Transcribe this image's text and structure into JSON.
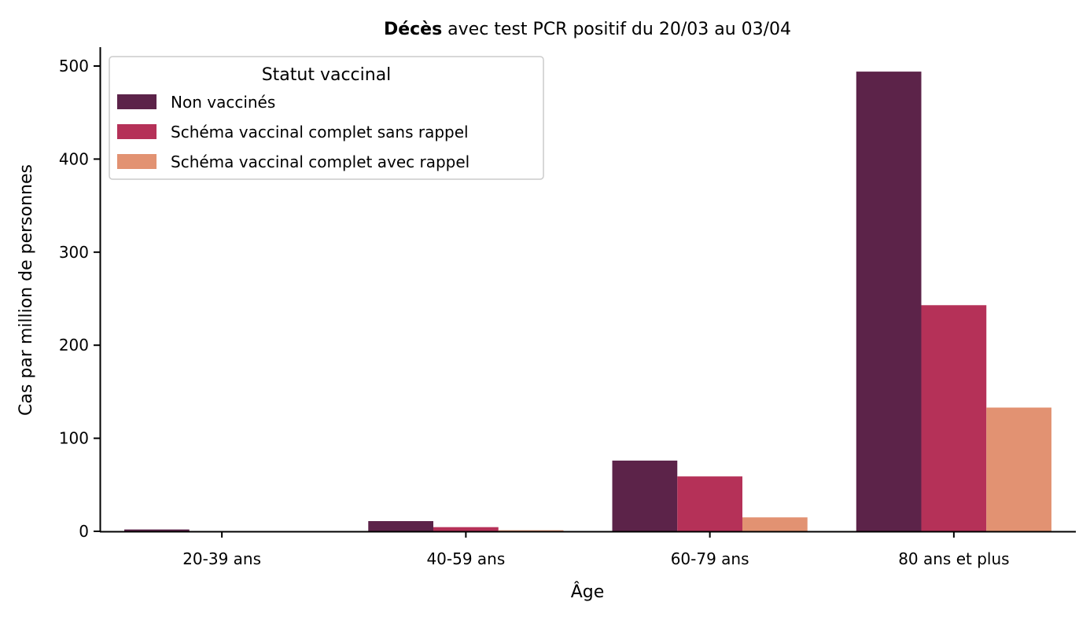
{
  "chart_data": {
    "type": "bar",
    "title_bold": "Décès",
    "title_rest": " avec test PCR positif du 20/03 au 03/04",
    "xlabel": "Âge",
    "ylabel": "Cas par million de personnes",
    "categories": [
      "20-39 ans",
      "40-59 ans",
      "60-79 ans",
      "80 ans et plus"
    ],
    "ylim": [
      0,
      520
    ],
    "yticks": [
      0,
      100,
      200,
      300,
      400,
      500
    ],
    "ytick_labels": [
      "0",
      "100",
      "200",
      "300",
      "400",
      "500"
    ],
    "legend": {
      "title": "Statut vaccinal",
      "placement": "upper left"
    },
    "grid": false,
    "series": [
      {
        "name": "Non vaccinés",
        "color": "#5c2349",
        "values": [
          2,
          11,
          76,
          494
        ]
      },
      {
        "name": "Schéma vaccinal complet sans rappel",
        "color": "#b53158",
        "values": [
          0.3,
          4.5,
          59,
          243
        ]
      },
      {
        "name": "Schéma vaccinal complet avec rappel",
        "color": "#e29272",
        "values": [
          0.1,
          1.2,
          15,
          133
        ]
      }
    ]
  }
}
